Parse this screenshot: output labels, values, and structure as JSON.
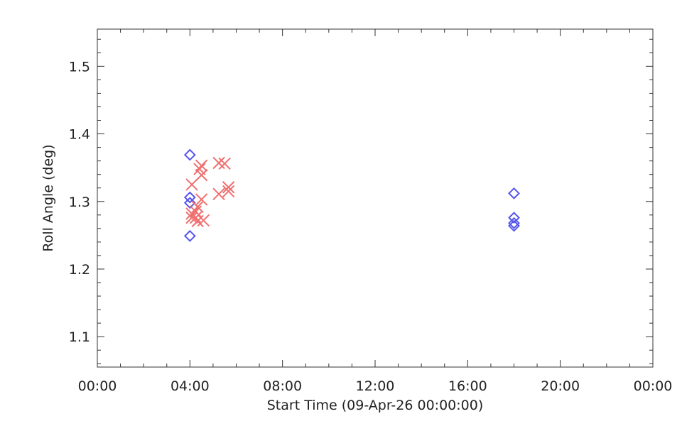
{
  "chart_data": {
    "type": "scatter",
    "title": "",
    "xlabel": "Start Time (09-Apr-26 00:00:00)",
    "ylabel": "Roll Angle (deg)",
    "xlim": [
      "00:00",
      "24:00"
    ],
    "ylim": [
      1.055,
      1.555
    ],
    "x_ticks": [
      "00:00",
      "04:00",
      "08:00",
      "12:00",
      "16:00",
      "20:00",
      "00:00"
    ],
    "y_ticks": [
      "1.1",
      "1.2",
      "1.3",
      "1.4",
      "1.5"
    ],
    "grid": false,
    "series": [
      {
        "marker": "diamond",
        "color": "#5555ee",
        "points": [
          {
            "x": "04:00",
            "y": 1.369
          },
          {
            "x": "04:00",
            "y": 1.306
          },
          {
            "x": "04:00",
            "y": 1.298
          },
          {
            "x": "04:00",
            "y": 1.249
          },
          {
            "x": "18:00",
            "y": 1.312
          },
          {
            "x": "18:00",
            "y": 1.276
          },
          {
            "x": "18:00",
            "y": 1.268
          },
          {
            "x": "18:00",
            "y": 1.264
          }
        ]
      },
      {
        "marker": "cross",
        "color": "#f07070",
        "points": [
          {
            "x": "04:05",
            "y": 1.325
          },
          {
            "x": "04:05",
            "y": 1.282
          },
          {
            "x": "04:05",
            "y": 1.276
          },
          {
            "x": "04:15",
            "y": 1.285
          },
          {
            "x": "04:15",
            "y": 1.276
          },
          {
            "x": "04:20",
            "y": 1.292
          },
          {
            "x": "04:20",
            "y": 1.271
          },
          {
            "x": "04:25",
            "y": 1.348
          },
          {
            "x": "04:30",
            "y": 1.353
          },
          {
            "x": "04:30",
            "y": 1.339
          },
          {
            "x": "04:30",
            "y": 1.303
          },
          {
            "x": "04:35",
            "y": 1.272
          },
          {
            "x": "05:15",
            "y": 1.357
          },
          {
            "x": "05:15",
            "y": 1.311
          },
          {
            "x": "05:30",
            "y": 1.356
          },
          {
            "x": "05:40",
            "y": 1.321
          },
          {
            "x": "05:40",
            "y": 1.315
          }
        ]
      }
    ]
  }
}
